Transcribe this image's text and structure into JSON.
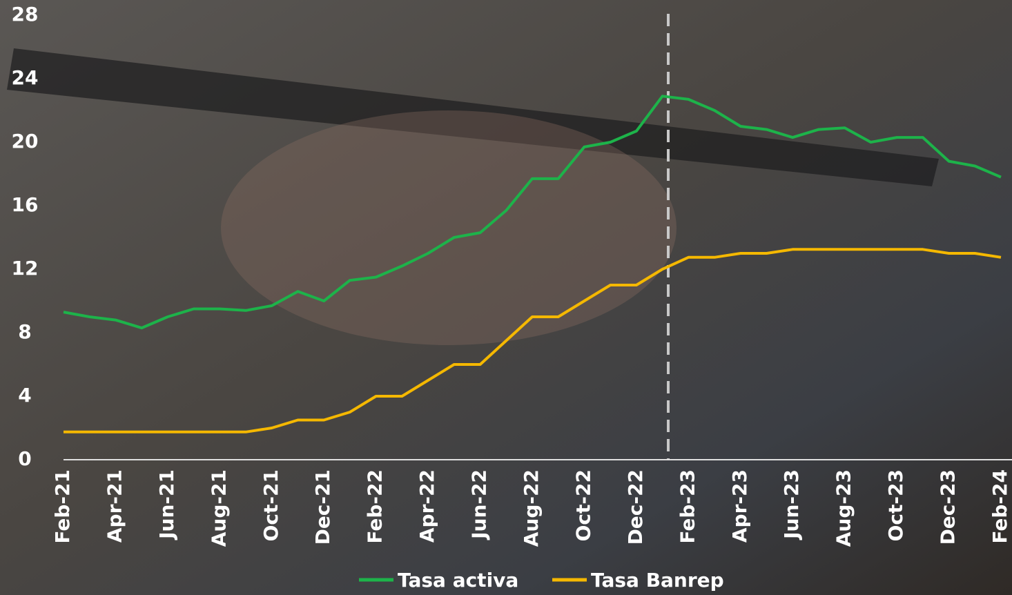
{
  "chart_data": {
    "type": "line",
    "categories": [
      "Feb-21",
      null,
      "Apr-21",
      null,
      "Jun-21",
      null,
      "Aug-21",
      null,
      "Oct-21",
      null,
      "Dec-21",
      null,
      "Feb-22",
      null,
      "Apr-22",
      null,
      "Jun-22",
      null,
      "Aug-22",
      null,
      "Oct-22",
      null,
      "Dec-22",
      null,
      "Feb-23",
      null,
      "Apr-23",
      null,
      "Jun-23",
      null,
      "Aug-23",
      null,
      "Oct-23",
      null,
      "Dec-23",
      null,
      "Feb-24"
    ],
    "series": [
      {
        "name": "Tasa activa",
        "color": "#1db34a",
        "values": [
          9.3,
          9.0,
          8.8,
          8.3,
          9.0,
          9.5,
          9.5,
          9.4,
          9.7,
          10.6,
          10.0,
          11.3,
          11.5,
          12.2,
          13.0,
          14.0,
          14.3,
          15.7,
          17.7,
          17.7,
          19.7,
          20.0,
          20.7,
          22.9,
          22.7,
          22.0,
          21.0,
          20.8,
          20.3,
          20.8,
          20.9,
          20.0,
          20.3,
          20.3,
          18.8,
          18.5,
          17.8
        ]
      },
      {
        "name": "Tasa Banrep",
        "color": "#f5b800",
        "values": [
          1.75,
          1.75,
          1.75,
          1.75,
          1.75,
          1.75,
          1.75,
          1.75,
          2.0,
          2.5,
          2.5,
          3.0,
          4.0,
          4.0,
          5.0,
          6.0,
          6.0,
          7.5,
          9.0,
          9.0,
          10.0,
          11.0,
          11.0,
          12.0,
          12.75,
          12.75,
          13.0,
          13.0,
          13.25,
          13.25,
          13.25,
          13.25,
          13.25,
          13.25,
          13.0,
          13.0,
          12.75
        ]
      }
    ],
    "ylim": [
      0,
      28
    ],
    "yticks": [
      0,
      4,
      8,
      12,
      16,
      20,
      24,
      28
    ]
  }
}
